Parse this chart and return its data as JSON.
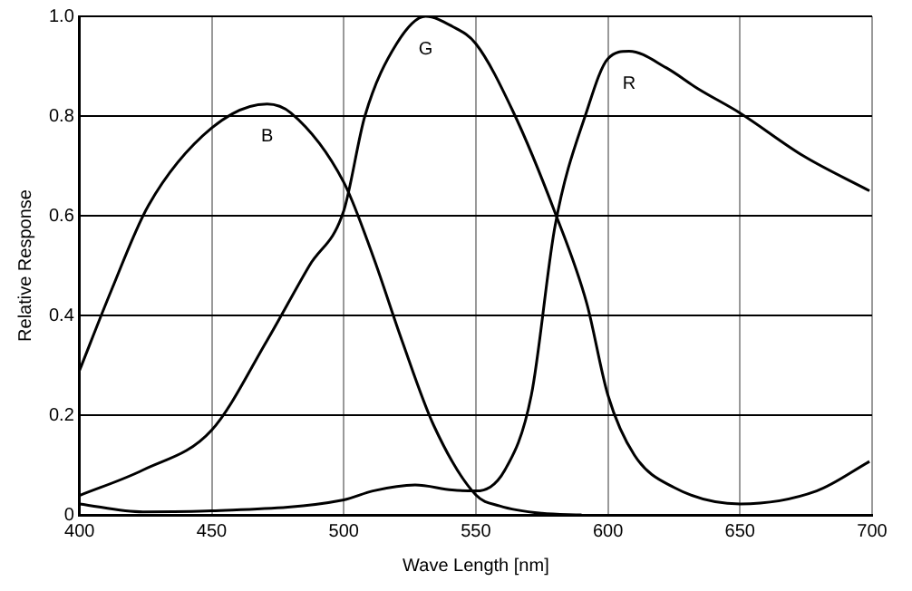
{
  "chart_data": {
    "type": "line",
    "xlabel": "Wave Length [nm]",
    "ylabel": "Relative Response",
    "xlim": [
      400,
      700
    ],
    "xticks": [
      400,
      450,
      500,
      550,
      600,
      650,
      700
    ],
    "ylim": [
      0,
      1
    ],
    "yticks": [
      0,
      0.2,
      0.4,
      0.6,
      0.8,
      {
        "value": 1,
        "label": "1.0"
      }
    ],
    "grid": true,
    "legend": false,
    "marker": "none",
    "line_style": "solid",
    "series": [
      {
        "name": "B",
        "color": "#000000",
        "x": [
          400,
          412,
          426,
          450,
          471,
          480,
          500,
          511,
          522,
          534,
          550,
          559,
          575,
          590
        ],
        "values": [
          0.29,
          0.45,
          0.62,
          0.776,
          0.824,
          0.806,
          0.667,
          0.52,
          0.35,
          0.18,
          0.04,
          0.018,
          0.003,
          0
        ]
      },
      {
        "name": "G",
        "color": "#000000",
        "x": [
          400,
          424,
          450,
          471,
          487,
          500,
          508,
          520,
          531,
          541,
          550,
          564,
          580,
          592,
          600,
          610,
          625,
          650,
          679,
          699
        ],
        "values": [
          0.039,
          0.09,
          0.17,
          0.35,
          0.5,
          0.61,
          0.8,
          0.945,
          1.0,
          0.98,
          0.945,
          0.81,
          0.606,
          0.424,
          0.24,
          0.12,
          0.055,
          0.022,
          0.048,
          0.107
        ]
      },
      {
        "name": "R",
        "color": "#000000",
        "x": [
          400,
          424,
          450,
          500,
          511,
          527,
          541,
          550,
          561,
          571,
          580,
          592,
          600,
          608,
          622,
          634,
          650,
          674,
          699
        ],
        "values": [
          0.022,
          0.006,
          0.008,
          0.03,
          0.048,
          0.06,
          0.05,
          0.048,
          0.09,
          0.24,
          0.58,
          0.81,
          0.915,
          0.93,
          0.897,
          0.855,
          0.806,
          0.72,
          0.65
        ]
      }
    ]
  }
}
